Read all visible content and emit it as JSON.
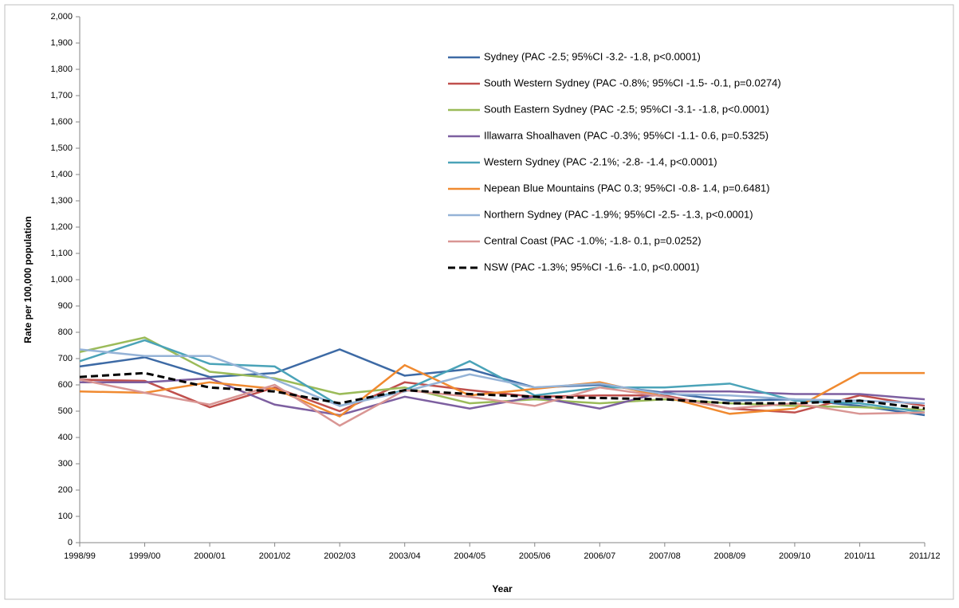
{
  "chart_data": {
    "type": "line",
    "x_label": "Year",
    "y_label": "Rate per 100,000 population",
    "categories": [
      "1998/99",
      "1999/00",
      "2000/01",
      "2001/02",
      "2002/03",
      "2003/04",
      "2004/05",
      "2005/06",
      "2006/07",
      "2007/08",
      "2008/09",
      "2009/10",
      "2010/11",
      "2011/12"
    ],
    "ylim": [
      0,
      2000
    ],
    "yticks": [
      0,
      100,
      200,
      300,
      400,
      500,
      600,
      700,
      800,
      900,
      {
        "value": 1000,
        "label": "1,000"
      },
      {
        "value": 1100,
        "label": "1,100"
      },
      {
        "value": 1200,
        "label": "1,200"
      },
      {
        "value": 1300,
        "label": "1,300"
      },
      {
        "value": 1400,
        "label": "1,400"
      },
      {
        "value": 1500,
        "label": "1,500"
      },
      {
        "value": 1600,
        "label": "1,600"
      },
      {
        "value": 1700,
        "label": "1,700"
      },
      {
        "value": 1800,
        "label": "1,800"
      },
      {
        "value": 1900,
        "label": "1,900"
      },
      {
        "value": 2000,
        "label": "2,000"
      }
    ],
    "series": [
      {
        "name": "Sydney (PAC -2.5; 95%CI -3.2- -1.8, p<0.0001)",
        "color": "#3d6aa5",
        "values": [
          670,
          705,
          630,
          645,
          735,
          635,
          660,
          590,
          600,
          570,
          540,
          545,
          520,
          485
        ]
      },
      {
        "name": "South Western Sydney (PAC -0.8%; 95%CI -1.5- -0.1, p=0.0274)",
        "color": "#c0504d",
        "values": [
          620,
          615,
          515,
          590,
          500,
          610,
          580,
          555,
          560,
          560,
          510,
          495,
          560,
          520
        ]
      },
      {
        "name": "South Eastern Sydney (PAC -2.5; 95%CI -3.1- -1.8, p<0.0001)",
        "color": "#9bbb59",
        "values": [
          725,
          780,
          650,
          625,
          565,
          590,
          530,
          545,
          530,
          545,
          530,
          520,
          515,
          505
        ]
      },
      {
        "name": "Illawarra Shoalhaven (PAC -0.3%; 95%CI -1.1- 0.6, p=0.5325)",
        "color": "#7d5fa0",
        "values": [
          610,
          610,
          625,
          525,
          485,
          555,
          510,
          555,
          510,
          575,
          575,
          565,
          565,
          545
        ]
      },
      {
        "name": "Western Sydney (PAC -2.1%; -2.8- -1.4, p<0.0001)",
        "color": "#4aa3b8",
        "values": [
          690,
          770,
          680,
          670,
          520,
          580,
          690,
          560,
          590,
          590,
          605,
          540,
          530,
          495
        ]
      },
      {
        "name": "Nepean Blue Mountains (PAC 0.3; 95%CI -0.8- 1.4, p=0.6481)",
        "color": "#f08a30",
        "values": [
          575,
          570,
          610,
          585,
          480,
          675,
          560,
          585,
          610,
          555,
          490,
          510,
          645,
          645
        ]
      },
      {
        "name": "Northern Sydney (PAC -1.9%; 95%CI -2.5- -1.3, p<0.0001)",
        "color": "#95b3d7",
        "values": [
          735,
          710,
          710,
          620,
          520,
          575,
          640,
          590,
          605,
          565,
          560,
          545,
          540,
          530
        ]
      },
      {
        "name": "Central Coast (PAC -1.0%; -1.8- 0.1, p=0.0252)",
        "color": "#d99694",
        "values": [
          620,
          570,
          525,
          600,
          445,
          580,
          555,
          520,
          590,
          555,
          510,
          530,
          490,
          495
        ]
      },
      {
        "name": "NSW  (PAC -1.3%; 95%CI -1.6- -1.0, p<0.0001)",
        "color": "#000000",
        "dashed": true,
        "values": [
          630,
          645,
          590,
          575,
          530,
          580,
          565,
          555,
          550,
          545,
          530,
          530,
          540,
          510
        ]
      }
    ]
  }
}
